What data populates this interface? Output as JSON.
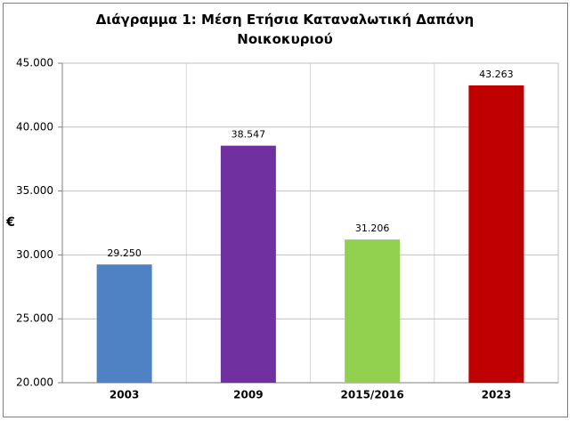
{
  "chart_data": {
    "type": "bar",
    "title": "Διάγραμμα 1: Μέση Ετήσια Καταναλωτική Δαπάνη Νοικοκυριού",
    "y_label": "€",
    "categories": [
      "2003",
      "2009",
      "2015/2016",
      "2023"
    ],
    "values": [
      29250,
      38547,
      31206,
      43263
    ],
    "value_labels": [
      "29.250",
      "38.547",
      "31.206",
      "43.263"
    ],
    "colors": [
      "#4f81c5",
      "#7030a0",
      "#92d050",
      "#c00000"
    ],
    "ylim": [
      20000,
      45000
    ],
    "yticks": [
      {
        "value": 20000,
        "label": "20.000"
      },
      {
        "value": 25000,
        "label": "25.000"
      },
      {
        "value": 30000,
        "label": "30.000"
      },
      {
        "value": 35000,
        "label": "35.000"
      },
      {
        "value": 40000,
        "label": "40.000"
      },
      {
        "value": 45000,
        "label": "45.000"
      }
    ],
    "grid": true
  }
}
